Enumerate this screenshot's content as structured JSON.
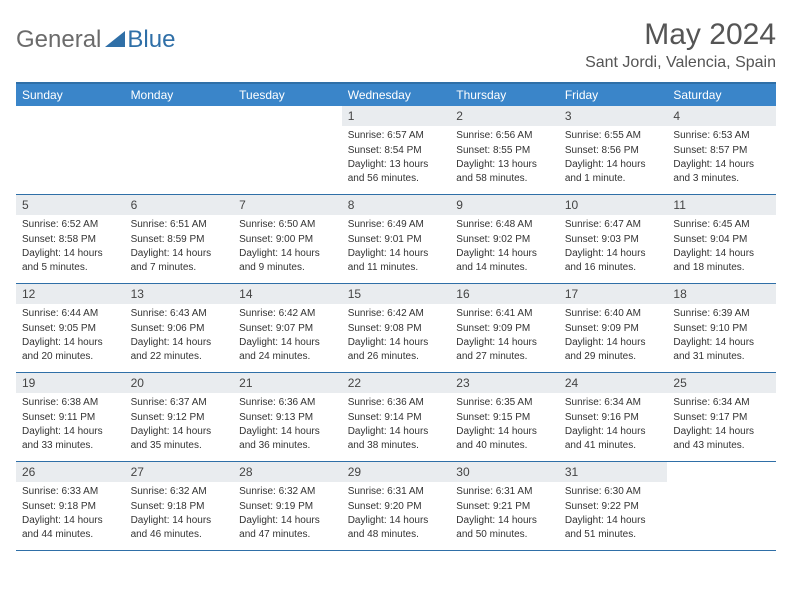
{
  "logo": {
    "text1": "General",
    "text2": "Blue",
    "icon_color": "#2f6fa7",
    "text1_color": "#6b6b6b",
    "text2_color": "#2f6fa7"
  },
  "header": {
    "month": "May 2024",
    "location": "Sant Jordi, Valencia, Spain"
  },
  "colors": {
    "header_bg": "#3a85c9",
    "header_text": "#ffffff",
    "border": "#2f6fa7",
    "daynum_bg": "#e9ecef",
    "text": "#333333"
  },
  "weekdays": [
    "Sunday",
    "Monday",
    "Tuesday",
    "Wednesday",
    "Thursday",
    "Friday",
    "Saturday"
  ],
  "weeks": [
    [
      null,
      null,
      null,
      {
        "n": "1",
        "sunrise": "Sunrise: 6:57 AM",
        "sunset": "Sunset: 8:54 PM",
        "daylight": "Daylight: 13 hours and 56 minutes."
      },
      {
        "n": "2",
        "sunrise": "Sunrise: 6:56 AM",
        "sunset": "Sunset: 8:55 PM",
        "daylight": "Daylight: 13 hours and 58 minutes."
      },
      {
        "n": "3",
        "sunrise": "Sunrise: 6:55 AM",
        "sunset": "Sunset: 8:56 PM",
        "daylight": "Daylight: 14 hours and 1 minute."
      },
      {
        "n": "4",
        "sunrise": "Sunrise: 6:53 AM",
        "sunset": "Sunset: 8:57 PM",
        "daylight": "Daylight: 14 hours and 3 minutes."
      }
    ],
    [
      {
        "n": "5",
        "sunrise": "Sunrise: 6:52 AM",
        "sunset": "Sunset: 8:58 PM",
        "daylight": "Daylight: 14 hours and 5 minutes."
      },
      {
        "n": "6",
        "sunrise": "Sunrise: 6:51 AM",
        "sunset": "Sunset: 8:59 PM",
        "daylight": "Daylight: 14 hours and 7 minutes."
      },
      {
        "n": "7",
        "sunrise": "Sunrise: 6:50 AM",
        "sunset": "Sunset: 9:00 PM",
        "daylight": "Daylight: 14 hours and 9 minutes."
      },
      {
        "n": "8",
        "sunrise": "Sunrise: 6:49 AM",
        "sunset": "Sunset: 9:01 PM",
        "daylight": "Daylight: 14 hours and 11 minutes."
      },
      {
        "n": "9",
        "sunrise": "Sunrise: 6:48 AM",
        "sunset": "Sunset: 9:02 PM",
        "daylight": "Daylight: 14 hours and 14 minutes."
      },
      {
        "n": "10",
        "sunrise": "Sunrise: 6:47 AM",
        "sunset": "Sunset: 9:03 PM",
        "daylight": "Daylight: 14 hours and 16 minutes."
      },
      {
        "n": "11",
        "sunrise": "Sunrise: 6:45 AM",
        "sunset": "Sunset: 9:04 PM",
        "daylight": "Daylight: 14 hours and 18 minutes."
      }
    ],
    [
      {
        "n": "12",
        "sunrise": "Sunrise: 6:44 AM",
        "sunset": "Sunset: 9:05 PM",
        "daylight": "Daylight: 14 hours and 20 minutes."
      },
      {
        "n": "13",
        "sunrise": "Sunrise: 6:43 AM",
        "sunset": "Sunset: 9:06 PM",
        "daylight": "Daylight: 14 hours and 22 minutes."
      },
      {
        "n": "14",
        "sunrise": "Sunrise: 6:42 AM",
        "sunset": "Sunset: 9:07 PM",
        "daylight": "Daylight: 14 hours and 24 minutes."
      },
      {
        "n": "15",
        "sunrise": "Sunrise: 6:42 AM",
        "sunset": "Sunset: 9:08 PM",
        "daylight": "Daylight: 14 hours and 26 minutes."
      },
      {
        "n": "16",
        "sunrise": "Sunrise: 6:41 AM",
        "sunset": "Sunset: 9:09 PM",
        "daylight": "Daylight: 14 hours and 27 minutes."
      },
      {
        "n": "17",
        "sunrise": "Sunrise: 6:40 AM",
        "sunset": "Sunset: 9:09 PM",
        "daylight": "Daylight: 14 hours and 29 minutes."
      },
      {
        "n": "18",
        "sunrise": "Sunrise: 6:39 AM",
        "sunset": "Sunset: 9:10 PM",
        "daylight": "Daylight: 14 hours and 31 minutes."
      }
    ],
    [
      {
        "n": "19",
        "sunrise": "Sunrise: 6:38 AM",
        "sunset": "Sunset: 9:11 PM",
        "daylight": "Daylight: 14 hours and 33 minutes."
      },
      {
        "n": "20",
        "sunrise": "Sunrise: 6:37 AM",
        "sunset": "Sunset: 9:12 PM",
        "daylight": "Daylight: 14 hours and 35 minutes."
      },
      {
        "n": "21",
        "sunrise": "Sunrise: 6:36 AM",
        "sunset": "Sunset: 9:13 PM",
        "daylight": "Daylight: 14 hours and 36 minutes."
      },
      {
        "n": "22",
        "sunrise": "Sunrise: 6:36 AM",
        "sunset": "Sunset: 9:14 PM",
        "daylight": "Daylight: 14 hours and 38 minutes."
      },
      {
        "n": "23",
        "sunrise": "Sunrise: 6:35 AM",
        "sunset": "Sunset: 9:15 PM",
        "daylight": "Daylight: 14 hours and 40 minutes."
      },
      {
        "n": "24",
        "sunrise": "Sunrise: 6:34 AM",
        "sunset": "Sunset: 9:16 PM",
        "daylight": "Daylight: 14 hours and 41 minutes."
      },
      {
        "n": "25",
        "sunrise": "Sunrise: 6:34 AM",
        "sunset": "Sunset: 9:17 PM",
        "daylight": "Daylight: 14 hours and 43 minutes."
      }
    ],
    [
      {
        "n": "26",
        "sunrise": "Sunrise: 6:33 AM",
        "sunset": "Sunset: 9:18 PM",
        "daylight": "Daylight: 14 hours and 44 minutes."
      },
      {
        "n": "27",
        "sunrise": "Sunrise: 6:32 AM",
        "sunset": "Sunset: 9:18 PM",
        "daylight": "Daylight: 14 hours and 46 minutes."
      },
      {
        "n": "28",
        "sunrise": "Sunrise: 6:32 AM",
        "sunset": "Sunset: 9:19 PM",
        "daylight": "Daylight: 14 hours and 47 minutes."
      },
      {
        "n": "29",
        "sunrise": "Sunrise: 6:31 AM",
        "sunset": "Sunset: 9:20 PM",
        "daylight": "Daylight: 14 hours and 48 minutes."
      },
      {
        "n": "30",
        "sunrise": "Sunrise: 6:31 AM",
        "sunset": "Sunset: 9:21 PM",
        "daylight": "Daylight: 14 hours and 50 minutes."
      },
      {
        "n": "31",
        "sunrise": "Sunrise: 6:30 AM",
        "sunset": "Sunset: 9:22 PM",
        "daylight": "Daylight: 14 hours and 51 minutes."
      },
      null
    ]
  ]
}
